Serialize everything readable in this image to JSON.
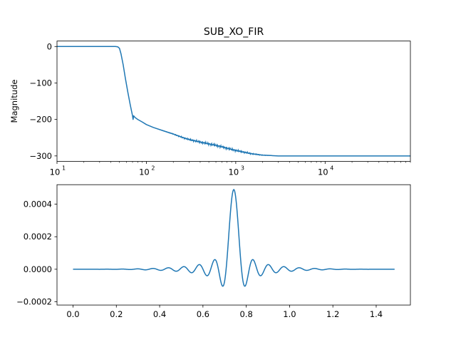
{
  "chart_data": [
    {
      "type": "line",
      "title": "SUB_XO_FIR",
      "xlabel": "",
      "ylabel": "Magnitude",
      "xscale": "log",
      "xlim": [
        10,
        90000
      ],
      "ylim": [
        -315,
        15
      ],
      "xticks": [
        10,
        100,
        1000,
        10000
      ],
      "xtick_labels": [
        {
          "base": "10",
          "exp": "1"
        },
        {
          "base": "10",
          "exp": "2"
        },
        {
          "base": "10",
          "exp": "3"
        },
        {
          "base": "10",
          "exp": "4"
        }
      ],
      "yticks": [
        0,
        -100,
        -200,
        -300
      ],
      "ytick_labels": [
        "0",
        "−100",
        "−200",
        "−300"
      ],
      "grid": false,
      "color": "#1f77b4",
      "series": [
        {
          "x": [
            10,
            20,
            30,
            40,
            45,
            48,
            50,
            52,
            55,
            58,
            62,
            66,
            70,
            71,
            72,
            75,
            80,
            90,
            100,
            120,
            150,
            200,
            250,
            300,
            400,
            500,
            600,
            700,
            800,
            1000,
            1200,
            1500,
            2000,
            2500,
            3000,
            4000,
            5000,
            7000,
            10000,
            20000,
            50000,
            90000
          ],
          "y": [
            0,
            0,
            0,
            0,
            0,
            -1,
            -5,
            -20,
            -50,
            -85,
            -125,
            -160,
            -190,
            -200,
            -190,
            -195,
            -200,
            -207,
            -214,
            -222,
            -230,
            -240,
            -249,
            -255,
            -262,
            -267,
            -271,
            -275,
            -279,
            -285,
            -289,
            -294,
            -298,
            -299,
            -300,
            -300,
            -300,
            -300,
            -300,
            -300,
            -300,
            -300
          ]
        }
      ]
    },
    {
      "type": "line",
      "title": "",
      "xlabel": "",
      "ylabel": "",
      "xscale": "linear",
      "xlim": [
        -0.074,
        1.558
      ],
      "ylim": [
        -0.00022,
        0.00052
      ],
      "xticks": [
        0.0,
        0.2,
        0.4,
        0.6,
        0.8,
        1.0,
        1.2,
        1.4
      ],
      "xtick_labels": [
        "0.0",
        "0.2",
        "0.4",
        "0.6",
        "0.8",
        "1.0",
        "1.2",
        "1.4"
      ],
      "yticks": [
        0.0004,
        0.0002,
        0.0,
        -0.0002
      ],
      "ytick_labels": [
        "0.0004",
        "0.0002",
        "0.0000",
        "−0.0002"
      ],
      "grid": false,
      "color": "#1f77b4",
      "series": [
        {
          "x_start": 0.0,
          "x_end": 1.485,
          "peak_x": 0.7425,
          "peak_y": 0.00049,
          "sinc_period": 0.0356,
          "description_of_shape": "windowed sinc impulse response"
        }
      ]
    }
  ]
}
